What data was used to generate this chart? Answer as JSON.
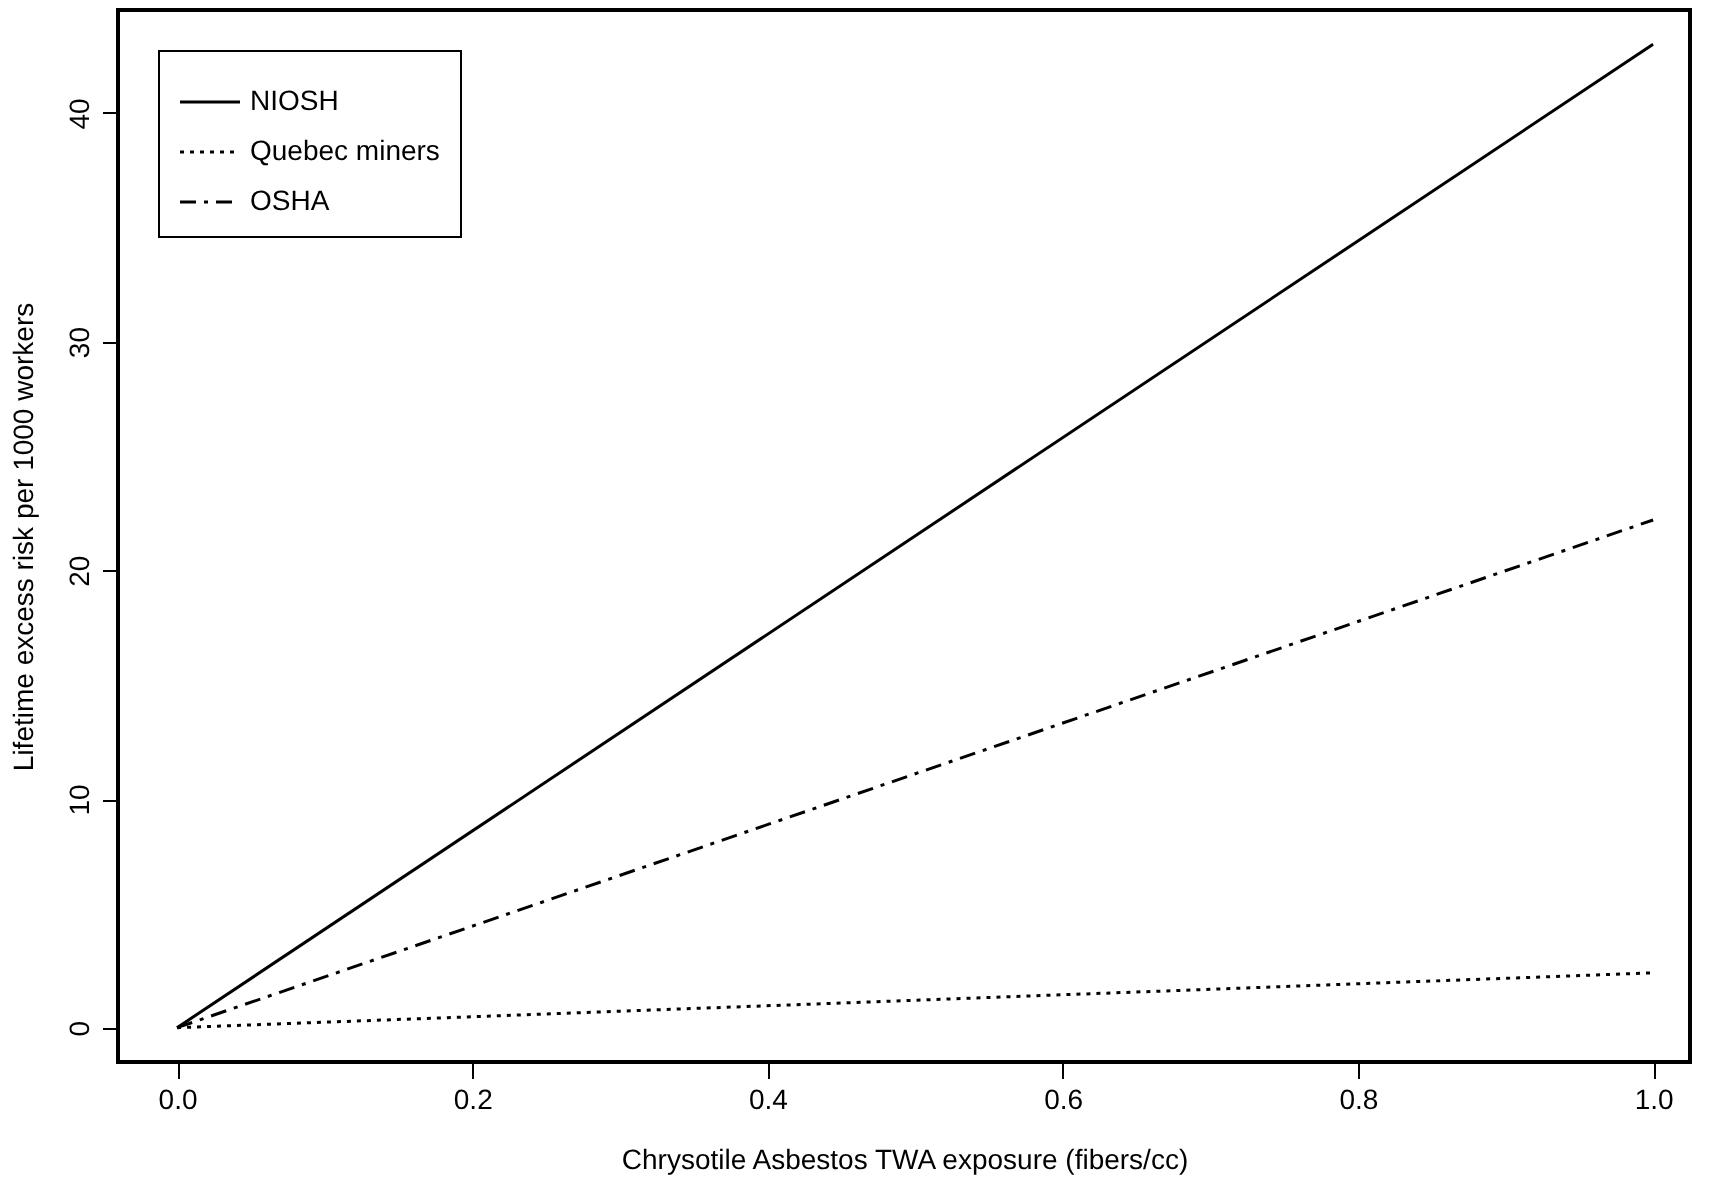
{
  "chart_data": {
    "type": "line",
    "xlabel": "Chrysotile Asbestos TWA exposure (fibers/cc)",
    "ylabel": "Lifetime excess risk per 1000 workers",
    "x": [
      0,
      1
    ],
    "series": [
      {
        "name": "NIOSH",
        "color": "#000000",
        "line_style": "solid",
        "values": [
          0,
          43
        ]
      },
      {
        "name": "Quebec miners",
        "color": "#000000",
        "line_style": "dotted",
        "values": [
          0,
          2.4
        ]
      },
      {
        "name": "OSHA",
        "color": "#000000",
        "line_style": "dashdot",
        "values": [
          0,
          22.2
        ]
      }
    ],
    "xlim": [
      -0.04,
      1.025
    ],
    "ylim": [
      -1.5,
      44.5
    ],
    "xticks": [
      {
        "value": 0,
        "label": "0.0"
      },
      0.2,
      0.4,
      0.6,
      0.8,
      {
        "value": 1,
        "label": "1.0"
      }
    ],
    "yticks": [
      0,
      10,
      20,
      30,
      40
    ],
    "grid": false,
    "legend": "top left",
    "marker": "none"
  }
}
